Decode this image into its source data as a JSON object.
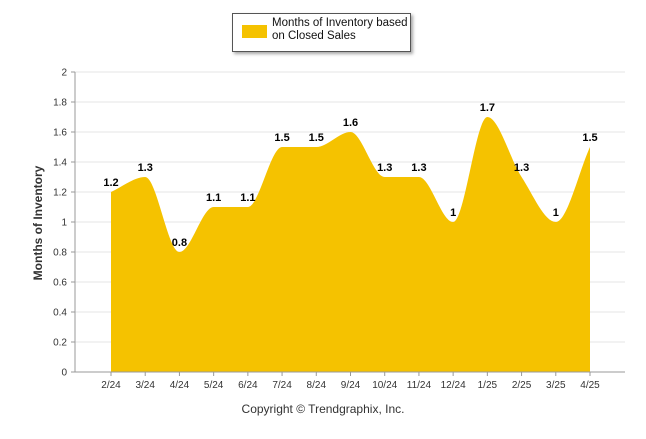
{
  "chart_data": {
    "type": "area",
    "categories": [
      "2/24",
      "3/24",
      "4/24",
      "5/24",
      "6/24",
      "7/24",
      "8/24",
      "9/24",
      "10/24",
      "11/24",
      "12/24",
      "1/25",
      "2/25",
      "3/25",
      "4/25"
    ],
    "series": [
      {
        "name": "Months of Inventory based on Closed Sales",
        "values": [
          1.2,
          1.3,
          0.8,
          1.1,
          1.1,
          1.5,
          1.5,
          1.6,
          1.3,
          1.3,
          1,
          1.7,
          1.3,
          1,
          1.5
        ],
        "data_labels": [
          "1.2",
          "1.3",
          "0.8",
          "1.1",
          "1.1",
          "1.5",
          "1.5",
          "1.6",
          "1.3",
          "1.3",
          "1",
          "1.7",
          "1.3",
          "1",
          "1.5"
        ]
      }
    ],
    "ylabel": "Months of Inventory",
    "xlabel": "",
    "ylim": [
      0,
      2
    ],
    "yticks": [
      "0",
      "0.2",
      "0.4",
      "0.6",
      "0.8",
      "1",
      "1.2",
      "1.4",
      "1.6",
      "1.8",
      "2"
    ],
    "grid": true,
    "legend_position": "top-center",
    "fill_color": "#F5C200",
    "grid_color": "#E6E6E6"
  },
  "legend": {
    "label": "Months of Inventory based on Closed Sales"
  },
  "footer": {
    "copyright": "Copyright © Trendgraphix, Inc."
  }
}
